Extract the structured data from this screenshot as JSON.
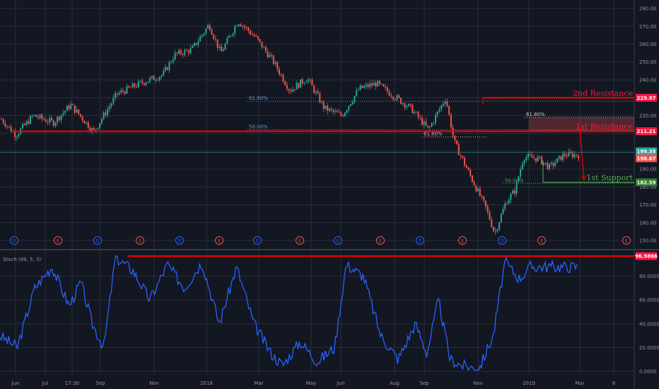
{
  "colors": {
    "background": "#131722",
    "grid": "#2a2e39",
    "up": "#26a69a",
    "down": "#ef5350",
    "resistance": "#ff0000",
    "support": "#4caf50",
    "fib": "#5b9bd5",
    "stoch": "#2962ff",
    "dividend": "#2962ff",
    "earnings": "#ef5350"
  },
  "chart_data": [
    {
      "type": "candlestick",
      "ylim": [
        145,
        282
      ],
      "y_ticks": [
        "280.00",
        "270.00",
        "260.00",
        "250.00",
        "240.00",
        "230.00",
        "220.00",
        "210.00",
        "200.00",
        "190.00",
        "180.00",
        "170.00",
        "160.00",
        "150.00"
      ],
      "x_ticks": [
        "Jun",
        "Jul",
        "17:30",
        "Sep",
        "Nov",
        "2018",
        "Mar",
        "May",
        "Jun",
        "Aug",
        "Sep",
        "Nov",
        "2019",
        "Mar",
        "8"
      ],
      "anchors": [
        {
          "t": 0,
          "v": 218
        },
        {
          "t": 0.025,
          "v": 209
        },
        {
          "t": 0.055,
          "v": 220
        },
        {
          "t": 0.09,
          "v": 216
        },
        {
          "t": 0.12,
          "v": 226
        },
        {
          "t": 0.16,
          "v": 211
        },
        {
          "t": 0.2,
          "v": 232
        },
        {
          "t": 0.24,
          "v": 238
        },
        {
          "t": 0.28,
          "v": 243
        },
        {
          "t": 0.3,
          "v": 254
        },
        {
          "t": 0.33,
          "v": 257
        },
        {
          "t": 0.36,
          "v": 271
        },
        {
          "t": 0.38,
          "v": 255
        },
        {
          "t": 0.41,
          "v": 273
        },
        {
          "t": 0.44,
          "v": 264
        },
        {
          "t": 0.47,
          "v": 251
        },
        {
          "t": 0.5,
          "v": 234
        },
        {
          "t": 0.53,
          "v": 241
        },
        {
          "t": 0.56,
          "v": 224
        },
        {
          "t": 0.59,
          "v": 220
        },
        {
          "t": 0.62,
          "v": 235
        },
        {
          "t": 0.65,
          "v": 238
        },
        {
          "t": 0.68,
          "v": 231
        },
        {
          "t": 0.71,
          "v": 224
        },
        {
          "t": 0.74,
          "v": 212
        },
        {
          "t": 0.77,
          "v": 230
        },
        {
          "t": 0.785,
          "v": 205
        },
        {
          "t": 0.81,
          "v": 188
        },
        {
          "t": 0.84,
          "v": 168
        },
        {
          "t": 0.855,
          "v": 154
        },
        {
          "t": 0.875,
          "v": 172
        },
        {
          "t": 0.89,
          "v": 178
        },
        {
          "t": 0.905,
          "v": 197
        },
        {
          "t": 0.93,
          "v": 196
        },
        {
          "t": 0.95,
          "v": 191
        },
        {
          "t": 0.975,
          "v": 198
        }
      ],
      "levels": [
        {
          "label": "2nd Resistance",
          "value": 229.97,
          "tag": "229.97"
        },
        {
          "label": "1st Resistance",
          "value": 211.21,
          "tag": "211.21"
        },
        {
          "label": "1st Support",
          "value": 182.59,
          "tag": "182.59"
        }
      ],
      "price_tags": [
        "199.35",
        "198.67"
      ],
      "fib_levels": [
        {
          "label": "61.80%",
          "value": 228
        },
        {
          "label": "50.00%",
          "value": 212
        },
        {
          "label": "61.80%",
          "value": 208
        },
        {
          "label": "61.80%",
          "value": 219
        },
        {
          "label": "50.00%",
          "value": 182
        }
      ],
      "events": [
        "D",
        "E",
        "D",
        "E",
        "D",
        "E",
        "D",
        "E",
        "D",
        "E",
        "D",
        "E",
        "D",
        "E",
        "E"
      ]
    },
    {
      "type": "line",
      "title": "Stoch (89, 5, 3)",
      "ylim": [
        0,
        100
      ],
      "y_ticks": [
        "80.0000",
        "60.0000",
        "40.0000",
        "20.0000",
        "0.0000"
      ],
      "tag": "96.9866",
      "value_max": 96.9866,
      "anchors": [
        {
          "t": 0,
          "v": 30
        },
        {
          "t": 0.03,
          "v": 20
        },
        {
          "t": 0.06,
          "v": 70
        },
        {
          "t": 0.09,
          "v": 88
        },
        {
          "t": 0.12,
          "v": 55
        },
        {
          "t": 0.14,
          "v": 75
        },
        {
          "t": 0.16,
          "v": 40
        },
        {
          "t": 0.18,
          "v": 20
        },
        {
          "t": 0.2,
          "v": 96
        },
        {
          "t": 0.23,
          "v": 85
        },
        {
          "t": 0.26,
          "v": 60
        },
        {
          "t": 0.29,
          "v": 90
        },
        {
          "t": 0.32,
          "v": 70
        },
        {
          "t": 0.35,
          "v": 92
        },
        {
          "t": 0.38,
          "v": 40
        },
        {
          "t": 0.41,
          "v": 88
        },
        {
          "t": 0.44,
          "v": 40
        },
        {
          "t": 0.47,
          "v": 15
        },
        {
          "t": 0.49,
          "v": 5
        },
        {
          "t": 0.52,
          "v": 25
        },
        {
          "t": 0.55,
          "v": 8
        },
        {
          "t": 0.58,
          "v": 20
        },
        {
          "t": 0.6,
          "v": 90
        },
        {
          "t": 0.63,
          "v": 80
        },
        {
          "t": 0.66,
          "v": 30
        },
        {
          "t": 0.69,
          "v": 10
        },
        {
          "t": 0.72,
          "v": 40
        },
        {
          "t": 0.74,
          "v": 15
        },
        {
          "t": 0.76,
          "v": 60
        },
        {
          "t": 0.78,
          "v": 10
        },
        {
          "t": 0.8,
          "v": 5
        },
        {
          "t": 0.83,
          "v": 2
        },
        {
          "t": 0.855,
          "v": 30
        },
        {
          "t": 0.875,
          "v": 92
        },
        {
          "t": 0.9,
          "v": 78
        },
        {
          "t": 0.92,
          "v": 88
        }
      ]
    }
  ]
}
